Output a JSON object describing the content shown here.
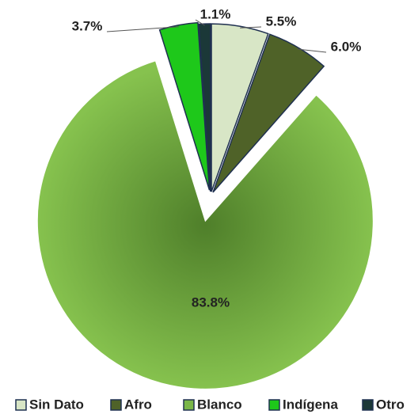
{
  "chart_data": {
    "type": "pie",
    "categories": [
      "Sin Dato",
      "Afro",
      "Blanco",
      "Indígena",
      "Otro"
    ],
    "values": [
      5.5,
      6.0,
      83.8,
      3.7,
      1.1
    ],
    "value_labels": [
      "5.5%",
      "6.0%",
      "83.8%",
      "3.7%",
      "1.1%"
    ],
    "colors": [
      "#d8e6c6",
      "#4f6228",
      "#7ab648",
      "#1ec81a",
      "#1b3838"
    ],
    "legend": "bottom"
  }
}
